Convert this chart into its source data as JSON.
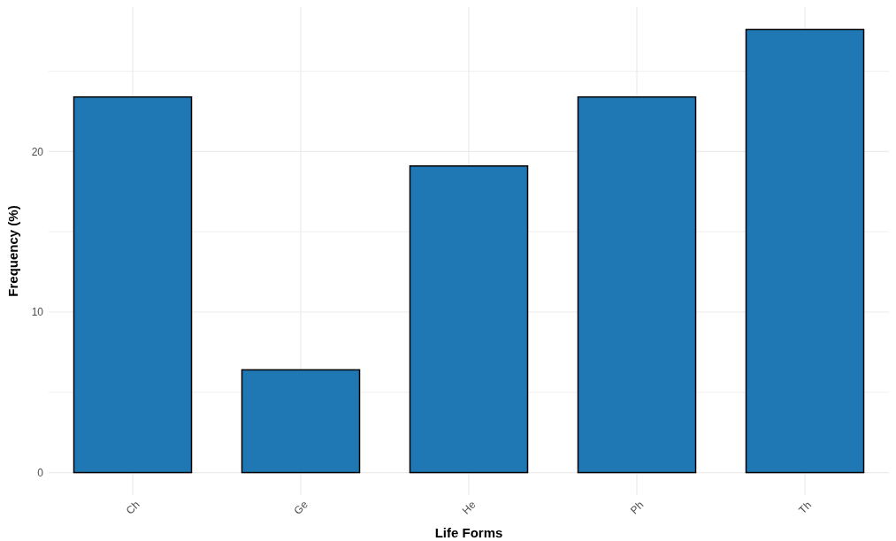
{
  "chart_data": {
    "type": "bar",
    "xlabel": "Life Forms",
    "ylabel": "Frequency (%)",
    "categories": [
      "Ch",
      "Ge",
      "He",
      "Ph",
      "Th"
    ],
    "values": [
      23.4,
      6.4,
      19.1,
      23.4,
      27.6
    ],
    "color": "#1f77b4",
    "ylim": [
      -1.4,
      29
    ],
    "yticks": [
      0,
      {
        "value": 5,
        "label": null
      },
      10,
      {
        "value": 15,
        "label": null
      },
      20,
      {
        "value": 25,
        "label": null
      }
    ],
    "grid": true
  }
}
